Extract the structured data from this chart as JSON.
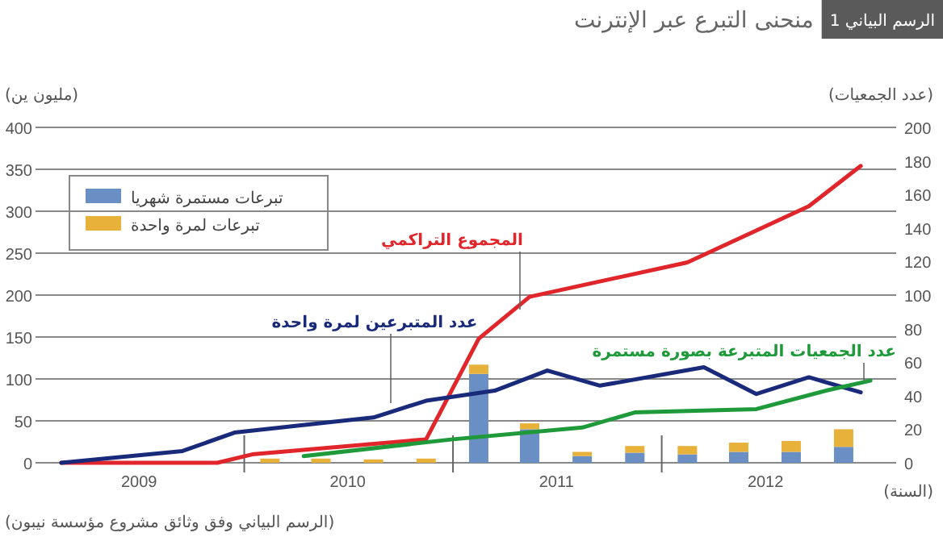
{
  "chart_data": {
    "type": "bar",
    "title": "منحنى التبرع عبر الإنترنت",
    "subtitle": "الرسم البياني 1",
    "ylabel": "(مليون ين)",
    "y2label": "(عدد الجمعيات)",
    "xlabel": "(السنة)",
    "annotations": [
      "(الرسم البياني وفق وثائق مشروع مؤسسة نيبون)"
    ],
    "x": [
      "2010-02-15",
      "2010-05-15",
      "2010-08-15",
      "2010-11-15",
      "2011-02-15",
      "2011-05-15",
      "2011-08-15",
      "2011-11-15",
      "2012-02-15",
      "2012-05-15",
      "2012-08-15",
      "2012-11-15"
    ],
    "stacked": true,
    "series": [
      {
        "name": "تبرعات مستمرة شهريا",
        "color": "#6a8fc4",
        "values": [
          null,
          null,
          null,
          null,
          106,
          40,
          8,
          12,
          10,
          13,
          13,
          19
        ]
      },
      {
        "name": "تبرعات لمرة واحدة",
        "color": "#e8b23a",
        "values": [
          5,
          5,
          4,
          5,
          11,
          7,
          5,
          8,
          10,
          11,
          13,
          21
        ]
      },
      {
        "name": "المجموع التراكمي",
        "type": "line",
        "color": "#e0262b",
        "x": [
          "2009-02-15",
          "2009-11-15",
          "2010-01-15",
          "2010-11-15",
          "2011-02-15",
          "2011-05-15",
          "2012-02-15",
          "2012-09-15",
          "2012-12-15"
        ],
        "values": [
          0,
          0,
          10,
          28,
          148,
          198,
          239,
          306,
          354
        ]
      },
      {
        "name": "عدد المتبرعين لمرة واحدة",
        "type": "line",
        "axis": "y2",
        "color": "#1a2a7a",
        "x": [
          "2009-02-15",
          "2009-09-15",
          "2009-12-15",
          "2010-08-15",
          "2010-11-15",
          "2011-03-15",
          "2011-06-15",
          "2011-09-15",
          "2012-03-15",
          "2012-06-15",
          "2012-09-15",
          "2012-12-15"
        ],
        "values": [
          0,
          7,
          18,
          27,
          37,
          43,
          55,
          46,
          57,
          41,
          51,
          42
        ]
      },
      {
        "name": "عدد الجمعيات المتبرعة بصورة مستمرة",
        "type": "line",
        "axis": "y2",
        "color": "#1e9a3a",
        "x": [
          "2010-04-15",
          "2011-01-01",
          "2011-08-15",
          "2011-11-15",
          "2012-06-15",
          "2012-10-15",
          "2013-01-01"
        ],
        "values": [
          4,
          14,
          21,
          30,
          32,
          43,
          49
        ]
      }
    ],
    "xlim": [
      "2009-01-01",
      "2013-02-15"
    ],
    "xticks": [
      {
        "value": "2009-07-01",
        "label": "2009"
      },
      {
        "value": "2010-07-01",
        "label": "2010"
      },
      {
        "value": "2011-07-01",
        "label": "2011"
      },
      {
        "value": "2012-07-01",
        "label": "2012"
      },
      {
        "value": "2010-01-01",
        "label": null
      },
      {
        "value": "2011-01-01",
        "label": null
      },
      {
        "value": "2012-01-01",
        "label": null
      }
    ],
    "ylim": [
      0,
      400
    ],
    "yticks": [
      0,
      50,
      100,
      150,
      200,
      250,
      300,
      350,
      400
    ],
    "y2lim": [
      0,
      200
    ],
    "y2ticks": [
      0,
      20,
      40,
      60,
      80,
      100,
      120,
      140,
      160,
      180,
      200
    ],
    "grid": "y",
    "legend": "top left"
  }
}
